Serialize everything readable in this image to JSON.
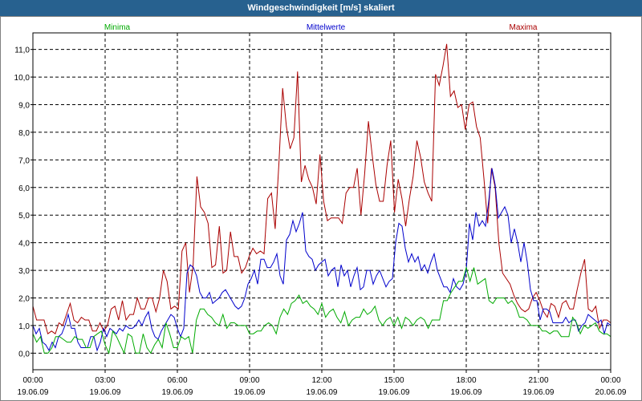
{
  "window": {
    "title": "Windgeschwindigkeit [m/s] skaliert"
  },
  "legend": {
    "min_label": "Minima",
    "mean_label": "Mittelwerte",
    "max_label": "Maxima"
  },
  "colors": {
    "min": "#00aa00",
    "mean": "#0000cc",
    "max": "#aa0000",
    "title_bar": "#27618f"
  },
  "chart_data": {
    "type": "line",
    "title": "Windgeschwindigkeit [m/s] skaliert",
    "ylabel": "",
    "xlabel": "",
    "ylim": [
      -0.6,
      11.6
    ],
    "xlim": [
      0,
      24
    ],
    "grid": true,
    "y_ticks": [
      "0,0",
      "1,0",
      "2,0",
      "3,0",
      "4,0",
      "5,0",
      "6,0",
      "7,0",
      "8,0",
      "9,0",
      "10,0",
      "11,0"
    ],
    "x_ticks": [
      {
        "time": "00:00",
        "date": "19.06.09"
      },
      {
        "time": "03:00",
        "date": "19.06.09"
      },
      {
        "time": "06:00",
        "date": "19.06.09"
      },
      {
        "time": "09:00",
        "date": "19.06.09"
      },
      {
        "time": "12:00",
        "date": "19.06.09"
      },
      {
        "time": "15:00",
        "date": "19.06.09"
      },
      {
        "time": "18:00",
        "date": "19.06.09"
      },
      {
        "time": "21:00",
        "date": "19.06.09"
      },
      {
        "time": "00:00",
        "date": "20.06.09"
      }
    ],
    "series": [
      {
        "name": "Maxima",
        "key": "max",
        "values": [
          1.7,
          1.2,
          1.2,
          1.2,
          0.7,
          0.8,
          0.7,
          1.1,
          1.0,
          1.4,
          1.8,
          1.2,
          1.1,
          1.3,
          1.2,
          1.2,
          0.8,
          0.8,
          1.1,
          0.8,
          1.0,
          1.6,
          1.7,
          1.2,
          1.9,
          1.2,
          1.4,
          1.4,
          2.0,
          1.6,
          1.6,
          2.0,
          2.0,
          1.5,
          2.0,
          3.0,
          2.6,
          1.6,
          1.7,
          1.6,
          3.7,
          4.0,
          2.2,
          3.2,
          6.4,
          5.3,
          5.1,
          4.7,
          3.1,
          3.2,
          4.6,
          2.9,
          3.0,
          4.4,
          3.5,
          3.5,
          2.9,
          3.1,
          3.5,
          3.8,
          3.6,
          3.7,
          3.6,
          5.6,
          5.8,
          4.5,
          6.9,
          9.6,
          8.2,
          7.4,
          7.8,
          10.2,
          6.2,
          6.8,
          6.3,
          6.0,
          5.4,
          7.2,
          5.5,
          4.8,
          4.9,
          4.9,
          4.9,
          4.7,
          5.8,
          6.0,
          6.0,
          6.7,
          5.0,
          6.5,
          8.4,
          7.2,
          6.1,
          5.5,
          5.5,
          6.8,
          7.7,
          5.1,
          6.3,
          5.6,
          4.6,
          5.6,
          6.4,
          7.7,
          7.1,
          6.2,
          5.8,
          5.5,
          10.1,
          9.7,
          10.4,
          11.2,
          9.3,
          9.5,
          8.9,
          9.0,
          8.1,
          9.0,
          9.1,
          8.2,
          7.8,
          6.3,
          4.7,
          6.7,
          6.0,
          4.0,
          2.9,
          2.7,
          2.5,
          2.1,
          1.8,
          1.6,
          1.5,
          1.6,
          2.0,
          2.2,
          1.9,
          1.5,
          1.3,
          1.8,
          1.7,
          1.3,
          1.8,
          1.9,
          1.6,
          1.6,
          2.3,
          2.9,
          3.4,
          1.6,
          1.5,
          1.7,
          0.9,
          1.2,
          1.2,
          1.1
        ]
      },
      {
        "name": "Mittelwerte",
        "key": "mean",
        "values": [
          1.0,
          0.7,
          0.9,
          0.4,
          0.3,
          0.1,
          0.4,
          0.2,
          0.6,
          0.7,
          1.0,
          1.4,
          0.9,
          0.9,
          0.4,
          0.2,
          0.2,
          0.2,
          0.6,
          0.6,
          0.1,
          0.4,
          0.9,
          0.6,
          0.9,
          0.8,
          0.7,
          0.9,
          0.8,
          1.0,
          0.9,
          0.9,
          1.0,
          1.2,
          1.0,
          1.3,
          1.5,
          0.9,
          0.6,
          0.5,
          0.8,
          1.0,
          1.2,
          1.4,
          1.3,
          0.9,
          0.6,
          0.9,
          2.9,
          3.2,
          3.1,
          2.8,
          2.2,
          2.0,
          2.0,
          2.2,
          1.8,
          1.9,
          2.0,
          2.2,
          2.3,
          2.1,
          1.9,
          1.7,
          1.6,
          1.7,
          2.0,
          2.5,
          2.7,
          3.0,
          2.5,
          3.4,
          3.4,
          3.1,
          3.1,
          3.3,
          3.6,
          2.8,
          2.5,
          4.1,
          4.3,
          4.8,
          4.4,
          4.7,
          5.1,
          3.7,
          3.5,
          3.4,
          3.0,
          3.2,
          3.3,
          3.4,
          2.8,
          3.0,
          3.1,
          2.4,
          3.2,
          2.8,
          3.0,
          2.4,
          2.8,
          3.1,
          2.3,
          2.4,
          3.0,
          3.0,
          2.5,
          2.8,
          3.0,
          2.7,
          2.4,
          2.6,
          2.7,
          4.0,
          4.7,
          4.6,
          3.8,
          3.3,
          3.6,
          3.3,
          3.5,
          3.0,
          3.2,
          2.9,
          3.3,
          3.6,
          3.0,
          2.7,
          2.4,
          2.4,
          2.2,
          2.7,
          2.4,
          2.3,
          2.5,
          3.0,
          4.7,
          4.1,
          5.1,
          4.6,
          4.8,
          4.6,
          5.5,
          6.7,
          6.1,
          4.9,
          5.1,
          5.3,
          5.0,
          4.0,
          4.5,
          4.0,
          3.3,
          4.0,
          3.3,
          2.3,
          1.9,
          1.9,
          1.2,
          1.6,
          1.6,
          1.5,
          1.1,
          1.1,
          1.1,
          1.1,
          1.3,
          1.1,
          1.2,
          1.2,
          0.8,
          1.0,
          1.1,
          1.4,
          1.3,
          1.2,
          1.1,
          1.2,
          0.7,
          1.1,
          1.0
        ]
      },
      {
        "name": "Minima",
        "key": "min",
        "values": [
          0.7,
          0.4,
          0.6,
          0.0,
          0.0,
          0.2,
          0.6,
          0.6,
          0.5,
          0.4,
          0.4,
          0.6,
          0.5,
          0.5,
          0.2,
          0.2,
          0.6,
          0.7,
          0.8,
          0.3,
          0.0,
          0.8,
          0.6,
          0.3,
          0.0,
          0.7,
          0.6,
          0.0,
          0.0,
          0.7,
          0.2,
          0.0,
          0.3,
          0.5,
          0.2,
          1.1,
          0.7,
          0.2,
          0.2,
          0.6,
          0.5,
          0.6,
          0.0,
          1.2,
          1.6,
          1.6,
          1.4,
          1.3,
          1.1,
          1.0,
          1.4,
          0.9,
          1.1,
          1.1,
          1.0,
          1.0,
          1.0,
          0.7,
          0.7,
          0.8,
          0.8,
          1.0,
          1.1,
          1.0,
          0.7,
          1.3,
          1.6,
          1.4,
          1.8,
          1.9,
          2.1,
          1.8,
          1.9,
          1.7,
          1.6,
          1.4,
          1.8,
          1.3,
          1.5,
          1.6,
          1.3,
          1.1,
          1.5,
          1.0,
          1.2,
          1.3,
          1.3,
          1.6,
          1.4,
          1.5,
          1.7,
          1.2,
          1.0,
          1.2,
          1.3,
          1.0,
          1.3,
          0.9,
          1.3,
          1.2,
          1.0,
          1.2,
          1.3,
          1.2,
          0.9,
          1.2,
          1.2,
          1.2,
          1.9,
          1.9,
          2.2,
          2.4,
          2.6,
          2.6,
          3.1,
          2.6,
          3.1,
          2.5,
          2.6,
          2.7,
          1.9,
          1.8,
          2.0,
          2.0,
          2.0,
          1.8,
          1.9,
          1.7,
          1.3,
          1.3,
          1.2,
          1.0,
          1.0,
          1.0,
          0.8,
          0.8,
          0.7,
          0.8,
          0.8,
          0.6,
          0.6,
          0.6,
          1.3,
          1.1,
          0.7,
          1.0,
          0.9,
          1.0,
          1.1,
          0.8,
          0.7,
          0.7,
          0.6
        ]
      }
    ]
  }
}
